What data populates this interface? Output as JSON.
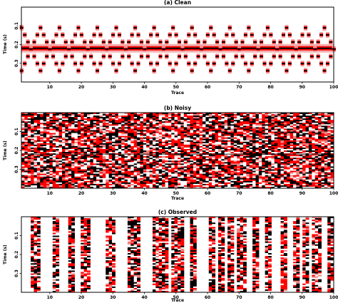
{
  "chart_data": [
    {
      "type": "heatmap",
      "title": "(a) Clean",
      "xlabel": "Trace",
      "ylabel": "Time (s)",
      "xlim": [
        1,
        100
      ],
      "ylim": [
        0.4,
        0
      ],
      "xticks": [
        "10",
        "20",
        "30",
        "40",
        "50",
        "60",
        "70",
        "80",
        "90",
        "100"
      ],
      "yticks": [
        "0.1",
        "0.2",
        "0.3"
      ],
      "colormap": [
        "#000000",
        "#ff0000",
        "#ffffff"
      ],
      "events": [
        {
          "kind": "flat",
          "time": 0.22
        },
        {
          "kind": "zigzag",
          "time_min": 0.11,
          "time_max": 0.34,
          "period_traces": 12,
          "phase": "rising"
        },
        {
          "kind": "zigzag",
          "time_min": 0.11,
          "time_max": 0.34,
          "period_traces": 12,
          "phase": "falling"
        }
      ]
    },
    {
      "type": "heatmap",
      "title": "(b) Noisy",
      "xlabel": "Trace",
      "ylabel": "Time (s)",
      "xlim": [
        1,
        100
      ],
      "ylim": [
        0.4,
        0
      ],
      "xticks": [
        "10",
        "20",
        "30",
        "40",
        "50",
        "60",
        "70",
        "80",
        "90",
        "100"
      ],
      "yticks": [
        "0.1",
        "0.2",
        "0.3"
      ],
      "colormap": [
        "#000000",
        "#ff0000",
        "#ffffff"
      ]
    },
    {
      "type": "heatmap",
      "title": "(c) Observed",
      "xlabel": "Trace",
      "ylabel": "Time (s)",
      "xlim": [
        1,
        100
      ],
      "ylim": [
        0.4,
        0
      ],
      "xticks": [
        "10",
        "20",
        "30",
        "40",
        "50",
        "60",
        "70",
        "80",
        "90",
        "100"
      ],
      "yticks": [
        "0.1",
        "0.2",
        "0.3"
      ],
      "colormap": [
        "#000000",
        "#ff0000",
        "#ffffff"
      ],
      "observed_traces": [
        4,
        5,
        6,
        11,
        12,
        16,
        17,
        20,
        21,
        22,
        28,
        29,
        30,
        35,
        36,
        37,
        38,
        43,
        44,
        45,
        46,
        47,
        49,
        50,
        51,
        52,
        55,
        56,
        61,
        62,
        64,
        65,
        67,
        68,
        70,
        71,
        72,
        75,
        76,
        79,
        80,
        84,
        85,
        88,
        89,
        91,
        92,
        94,
        95,
        96,
        99,
        100
      ]
    }
  ]
}
